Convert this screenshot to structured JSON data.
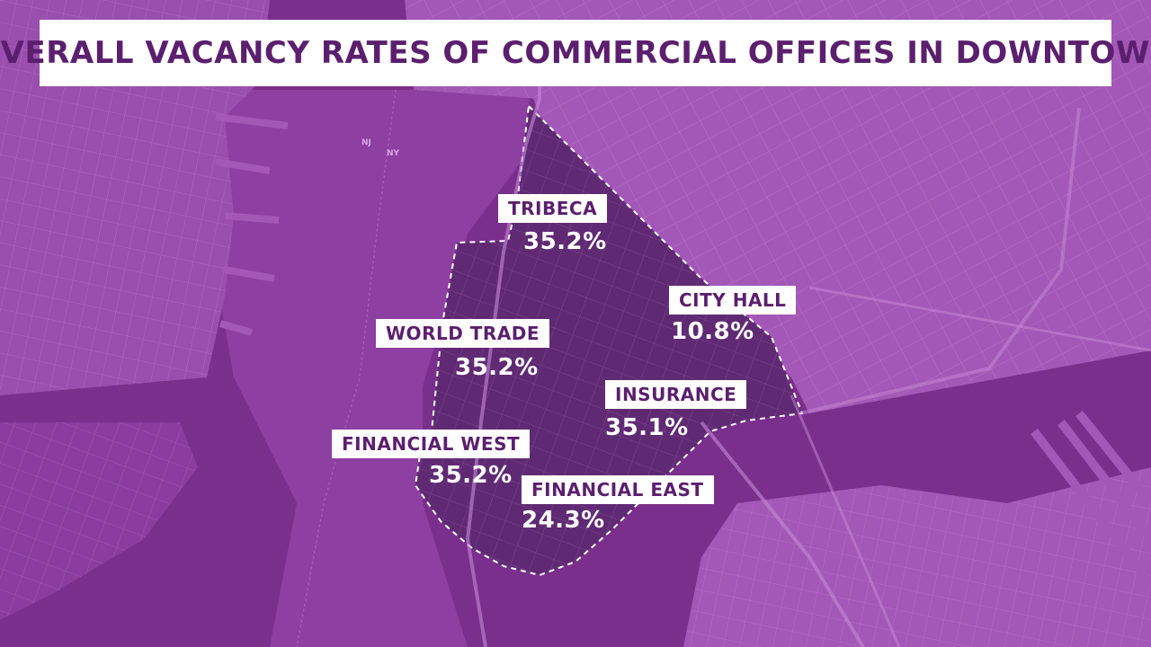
{
  "title": "OVERALL VACANCY RATES OF COMMERCIAL OFFICES IN DOWNTOWN",
  "map_labels": {
    "nj": "NJ",
    "ny": "NY"
  },
  "districts": [
    {
      "name": "TRIBECA",
      "value": "35.2%"
    },
    {
      "name": "CITY HALL",
      "value": "10.8%"
    },
    {
      "name": "WORLD TRADE",
      "value": "35.2%"
    },
    {
      "name": "INSURANCE",
      "value": "35.1%"
    },
    {
      "name": "FINANCIAL WEST",
      "value": "35.2%"
    },
    {
      "name": "FINANCIAL EAST",
      "value": "24.3%"
    }
  ],
  "colors": {
    "background": "#7a2f8c",
    "river": "#8e3fa2",
    "land": "#9a4eae",
    "district": "#5f2a73",
    "streets": "#c58bd6",
    "title_text": "#5b1f6e",
    "label_bg": "#ffffff"
  }
}
